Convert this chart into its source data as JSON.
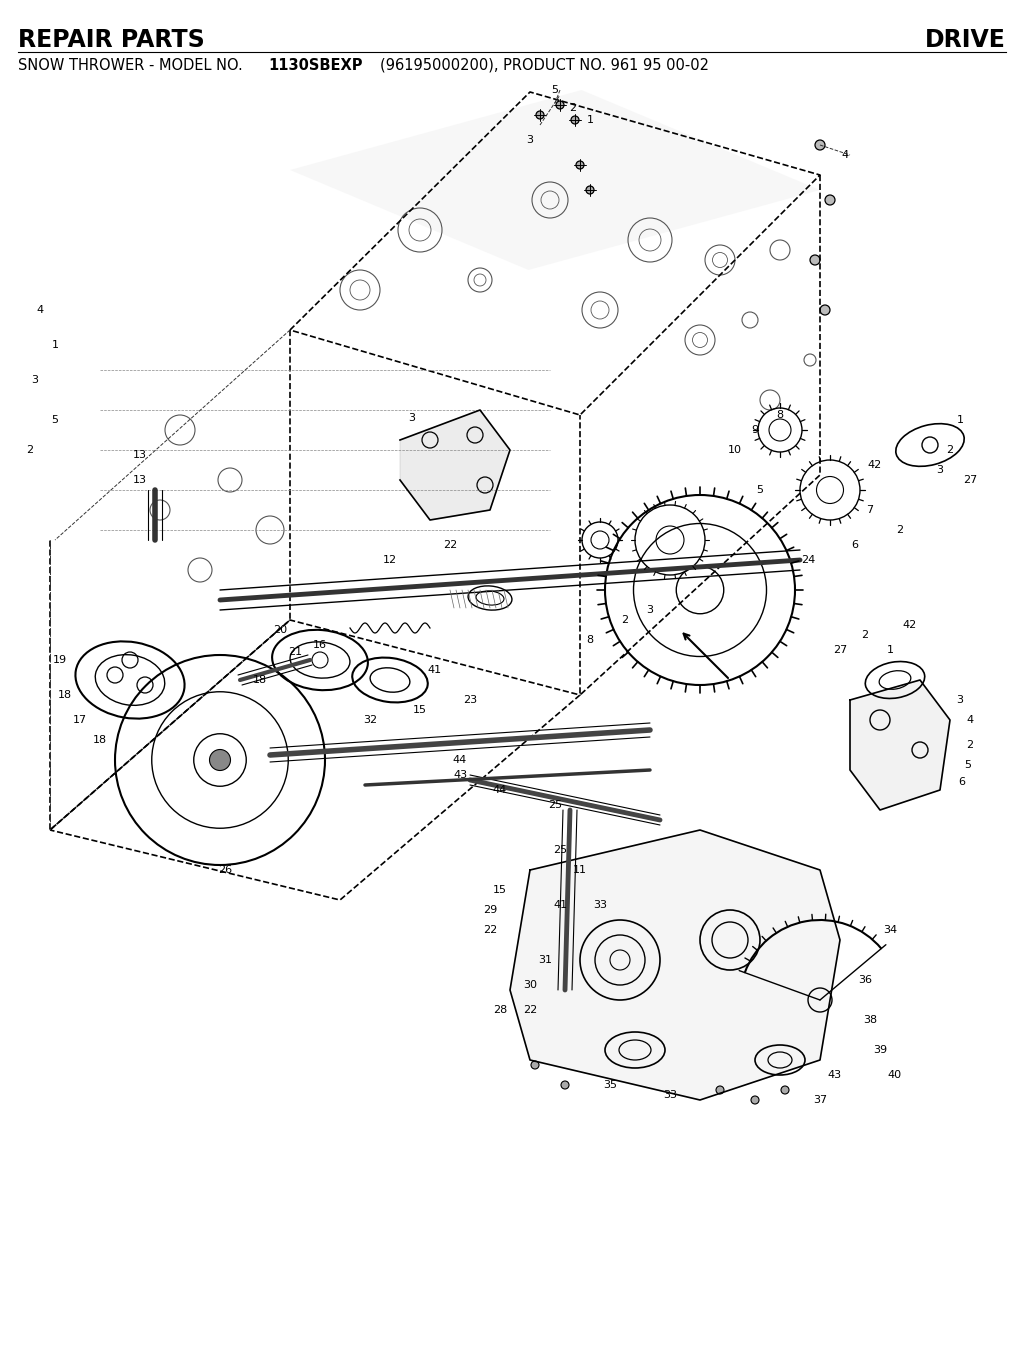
{
  "title_left": "REPAIR PARTS",
  "title_right": "DRIVE",
  "subtitle_prefix": "SNOW THROWER - MODEL NO. ",
  "subtitle_bold": "1130SBEXP",
  "subtitle_suffix": "(96195000200), PRODUCT NO. 961 95 00-02",
  "bg_color": "#ffffff",
  "text_color": "#000000",
  "line_color": "#000000",
  "fig_width": 10.24,
  "fig_height": 13.49,
  "dpi": 100
}
